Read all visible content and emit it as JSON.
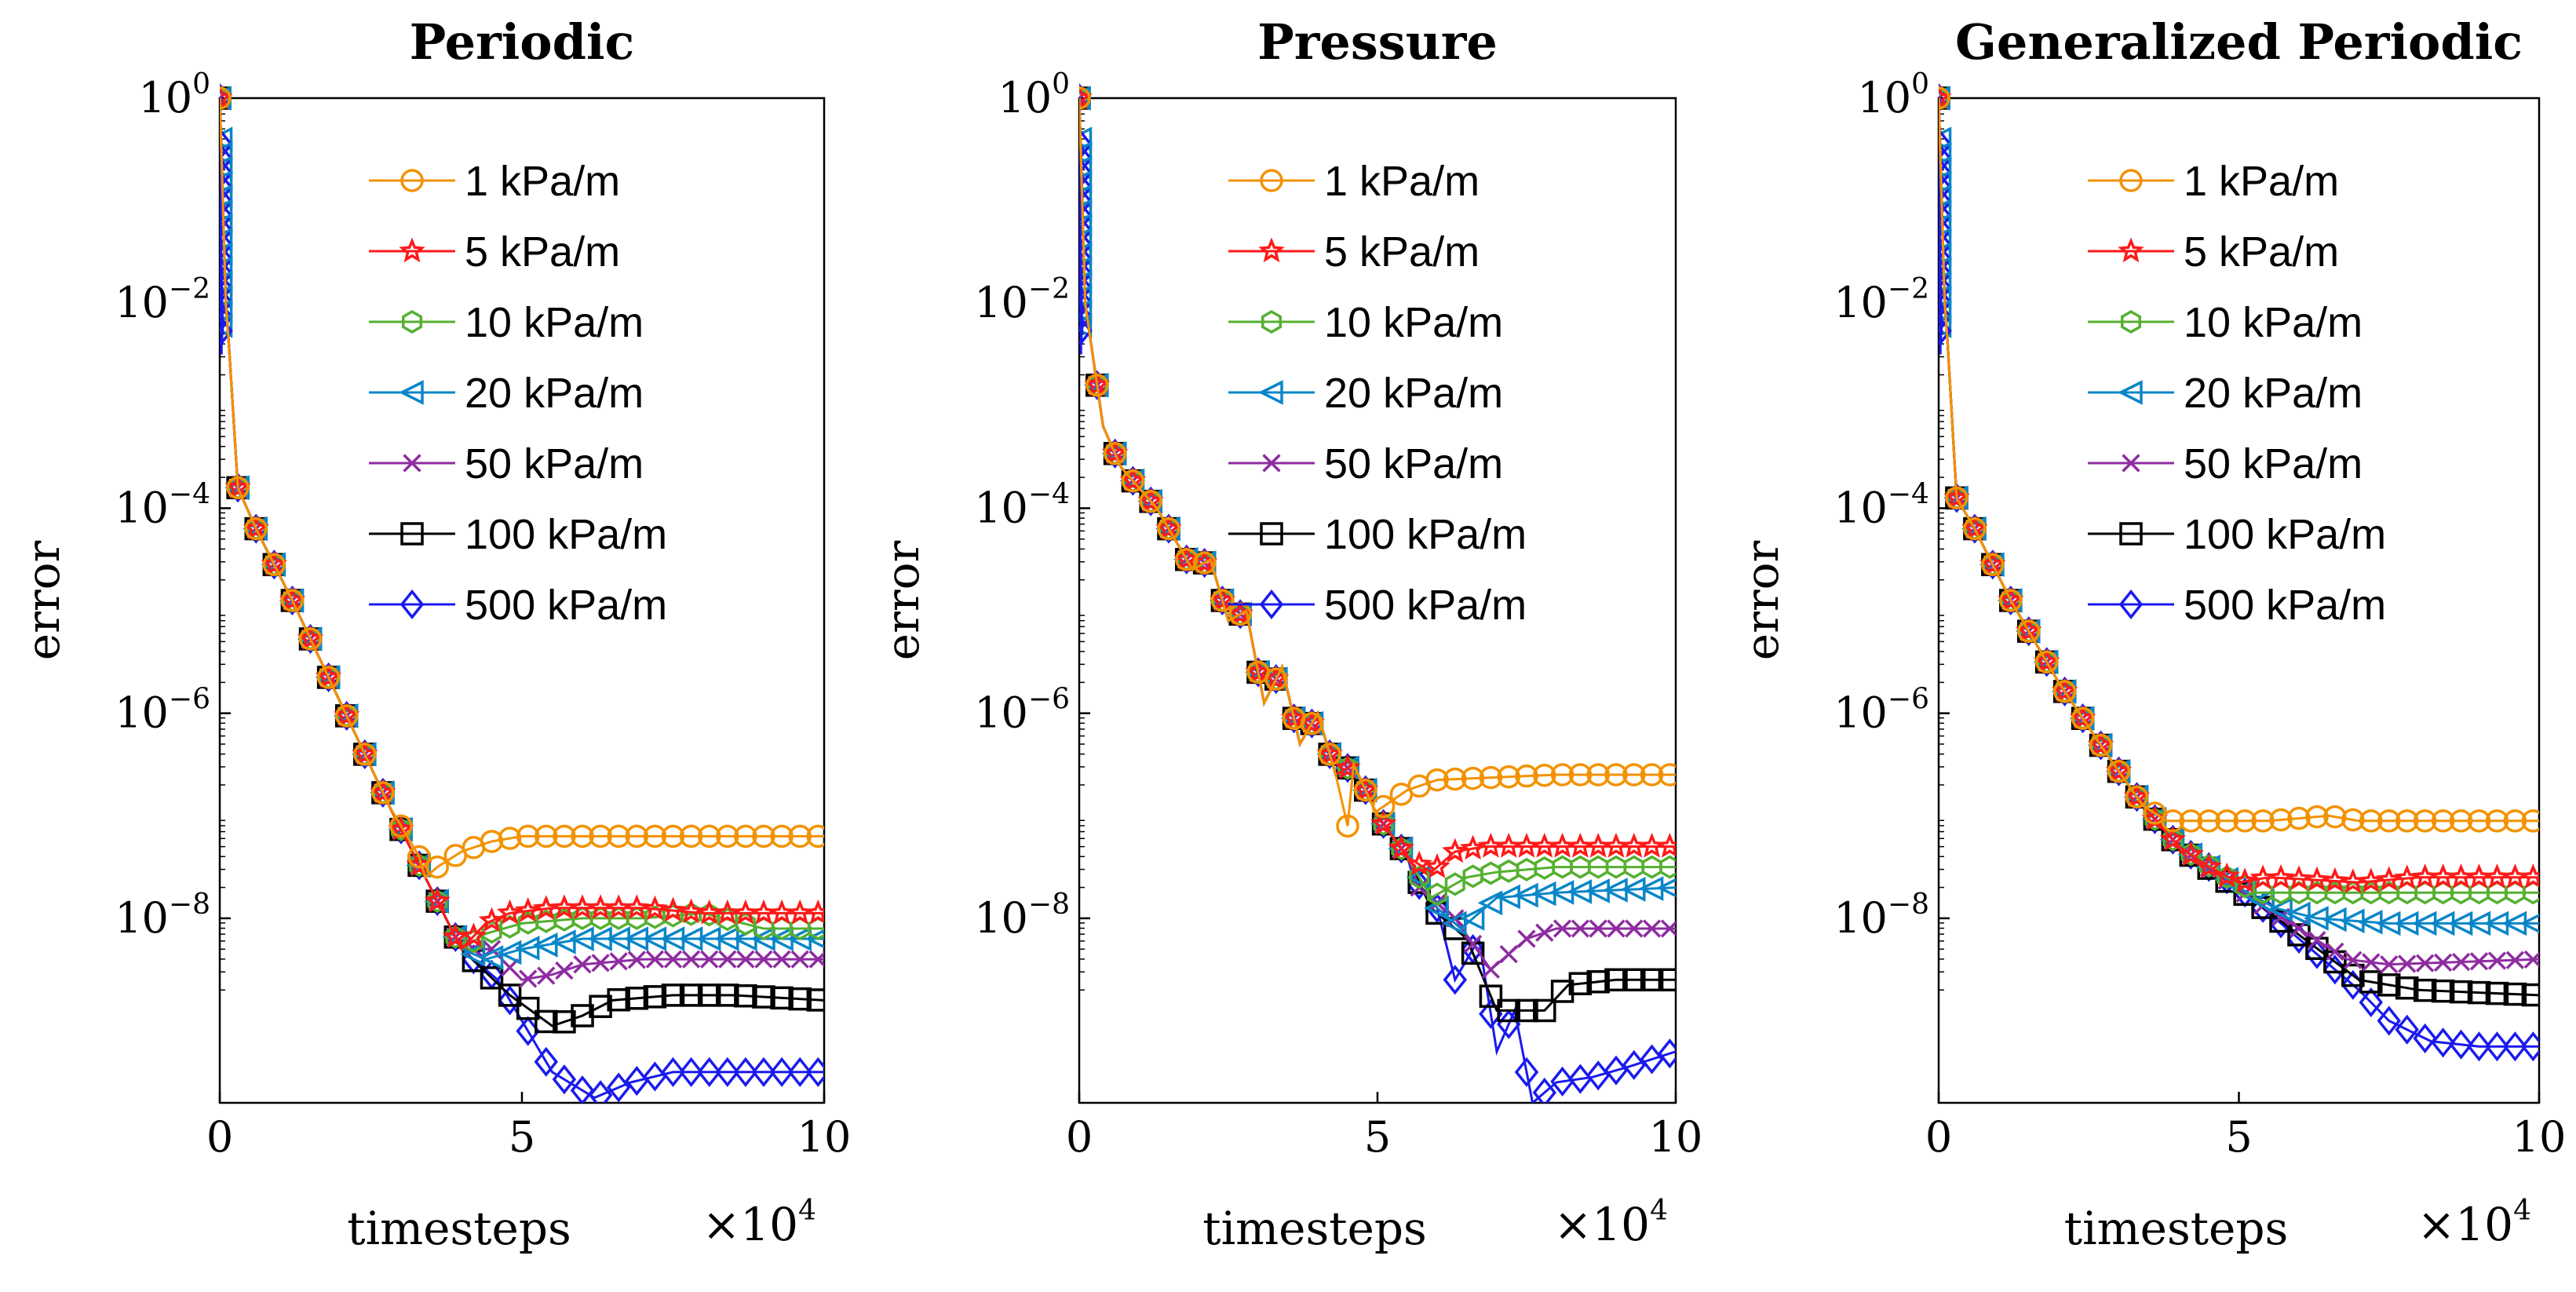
{
  "colors": {
    "1 kPa/m": "#f39200",
    "5 kPa/m": "#ff1a1a",
    "10 kPa/m": "#55b030",
    "20 kPa/m": "#0a86c8",
    "50 kPa/m": "#8e2ca0",
    "100 kPa/m": "#000000",
    "500 kPa/m": "#1a1aee"
  },
  "markers": {
    "1 kPa/m": "circle",
    "5 kPa/m": "star",
    "10 kPa/m": "hexagon",
    "20 kPa/m": "triangle-left",
    "50 kPa/m": "cross",
    "100 kPa/m": "square",
    "500 kPa/m": "diamond"
  },
  "chart_data": [
    {
      "type": "line",
      "title": "Periodic",
      "xlabel": "timesteps",
      "ylabel": "error",
      "x_multiplier": "×10",
      "x_multiplier_exp": "4",
      "y_scale": "log",
      "xlim": [
        0,
        10
      ],
      "ylim_log10": [
        -9.8,
        0
      ],
      "xticks": [
        "0",
        "5",
        "10"
      ],
      "yticks": [
        {
          "base": "10",
          "exp": "0",
          "log": 0
        },
        {
          "base": "10",
          "exp": "−2",
          "log": -2
        },
        {
          "base": "10",
          "exp": "−4",
          "log": -4
        },
        {
          "base": "10",
          "exp": "−6",
          "log": -6
        },
        {
          "base": "10",
          "exp": "−8",
          "log": -8
        }
      ],
      "legend_position": "top-right",
      "common_log10": [
        [
          0,
          0
        ],
        [
          0.05,
          -1
        ],
        [
          0.1,
          -2
        ],
        [
          0.15,
          -2.4
        ],
        [
          0.3,
          -3.8
        ],
        [
          0.6,
          -4.2
        ],
        [
          1.2,
          -4.9
        ],
        [
          2.0,
          -5.9
        ],
        [
          2.8,
          -6.9
        ],
        [
          3.4,
          -7.6
        ],
        [
          4.0,
          -8.3
        ]
      ],
      "series": [
        {
          "name": "1 kPa/m",
          "points_log10": [
            [
              3.3,
              -7.4
            ],
            [
              3.6,
              -7.5
            ],
            [
              4.0,
              -7.35
            ],
            [
              4.5,
              -7.25
            ],
            [
              5.0,
              -7.2
            ],
            [
              7.0,
              -7.2
            ],
            [
              10,
              -7.2
            ]
          ]
        },
        {
          "name": "5 kPa/m",
          "points_log10": [
            [
              4.0,
              -8.3
            ],
            [
              4.4,
              -8.05
            ],
            [
              4.8,
              -7.95
            ],
            [
              5.5,
              -7.9
            ],
            [
              7.0,
              -7.9
            ],
            [
              8.0,
              -7.95
            ],
            [
              10,
              -7.95
            ]
          ]
        },
        {
          "name": "10 kPa/m",
          "points_log10": [
            [
              4.0,
              -8.3
            ],
            [
              4.4,
              -8.15
            ],
            [
              5.0,
              -8.05
            ],
            [
              6.0,
              -8.0
            ],
            [
              7.0,
              -8.0
            ],
            [
              8.0,
              -7.95
            ],
            [
              9.0,
              -8.1
            ],
            [
              10,
              -8.1
            ]
          ]
        },
        {
          "name": "20 kPa/m",
          "points_log10": [
            [
              4.0,
              -8.3
            ],
            [
              4.4,
              -8.4
            ],
            [
              5.0,
              -8.3
            ],
            [
              6.0,
              -8.2
            ],
            [
              7.0,
              -8.2
            ],
            [
              9.0,
              -8.2
            ],
            [
              10,
              -8.2
            ]
          ]
        },
        {
          "name": "50 kPa/m",
          "points_log10": [
            [
              4.5,
              -8.3
            ],
            [
              5.0,
              -8.6
            ],
            [
              5.5,
              -8.55
            ],
            [
              6.0,
              -8.45
            ],
            [
              7.0,
              -8.4
            ],
            [
              10,
              -8.4
            ]
          ]
        },
        {
          "name": "100 kPa/m",
          "points_log10": [
            [
              4.8,
              -8.75
            ],
            [
              5.5,
              -9.05
            ],
            [
              6.0,
              -8.95
            ],
            [
              6.5,
              -8.8
            ],
            [
              7.5,
              -8.75
            ],
            [
              8.5,
              -8.75
            ],
            [
              10,
              -8.8
            ]
          ]
        },
        {
          "name": "500 kPa/m",
          "points_log10": [
            [
              4.6,
              -8.6
            ],
            [
              5.0,
              -9.0
            ],
            [
              5.5,
              -9.5
            ],
            [
              6.2,
              -9.75
            ],
            [
              6.8,
              -9.6
            ],
            [
              7.5,
              -9.5
            ],
            [
              10,
              -9.5
            ]
          ]
        }
      ]
    },
    {
      "type": "line",
      "title": "Pressure",
      "xlabel": "timesteps",
      "ylabel": "error",
      "x_multiplier": "×10",
      "x_multiplier_exp": "4",
      "y_scale": "log",
      "xlim": [
        0,
        10
      ],
      "ylim_log10": [
        -9.8,
        0
      ],
      "xticks": [
        "0",
        "5",
        "10"
      ],
      "yticks": [
        {
          "base": "10",
          "exp": "0",
          "log": 0
        },
        {
          "base": "10",
          "exp": "−2",
          "log": -2
        },
        {
          "base": "10",
          "exp": "−4",
          "log": -4
        },
        {
          "base": "10",
          "exp": "−6",
          "log": -6
        },
        {
          "base": "10",
          "exp": "−8",
          "log": -8
        }
      ],
      "legend_position": "top-right",
      "common_log10": [
        [
          0,
          0
        ],
        [
          0.05,
          -1
        ],
        [
          0.1,
          -2
        ],
        [
          0.2,
          -2.4
        ],
        [
          0.4,
          -3.2
        ],
        [
          0.7,
          -3.6
        ],
        [
          1.0,
          -3.8
        ],
        [
          1.3,
          -4.0
        ],
        [
          1.6,
          -4.3
        ],
        [
          1.9,
          -4.6
        ],
        [
          2.2,
          -4.5
        ],
        [
          2.5,
          -5.1
        ],
        [
          2.8,
          -5.0
        ],
        [
          3.1,
          -5.9
        ],
        [
          3.4,
          -5.55
        ],
        [
          3.7,
          -6.3
        ],
        [
          4.0,
          -6.0
        ],
        [
          4.3,
          -6.6
        ],
        [
          4.6,
          -6.5
        ],
        [
          5.0,
          -7.0
        ],
        [
          5.5,
          -7.4
        ]
      ],
      "series": [
        {
          "name": "1 kPa/m",
          "points_log10": [
            [
              4.5,
              -7.1
            ],
            [
              5.0,
              -6.95
            ],
            [
              5.5,
              -6.75
            ],
            [
              6.0,
              -6.65
            ],
            [
              8.0,
              -6.6
            ],
            [
              10,
              -6.6
            ]
          ]
        },
        {
          "name": "5 kPa/m",
          "points_log10": [
            [
              5.5,
              -7.4
            ],
            [
              5.9,
              -7.55
            ],
            [
              6.3,
              -7.35
            ],
            [
              6.8,
              -7.3
            ],
            [
              8.0,
              -7.3
            ],
            [
              10,
              -7.3
            ]
          ]
        },
        {
          "name": "10 kPa/m",
          "points_log10": [
            [
              5.5,
              -7.4
            ],
            [
              5.9,
              -7.8
            ],
            [
              6.5,
              -7.6
            ],
            [
              7.0,
              -7.55
            ],
            [
              8.0,
              -7.5
            ],
            [
              10,
              -7.5
            ]
          ]
        },
        {
          "name": "20 kPa/m",
          "points_log10": [
            [
              5.5,
              -7.4
            ],
            [
              6.0,
              -7.9
            ],
            [
              6.4,
              -8.1
            ],
            [
              7.0,
              -7.8
            ],
            [
              8.0,
              -7.75
            ],
            [
              10,
              -7.7
            ]
          ]
        },
        {
          "name": "50 kPa/m",
          "points_log10": [
            [
              5.7,
              -7.7
            ],
            [
              6.3,
              -8.0
            ],
            [
              6.9,
              -8.5
            ],
            [
              7.5,
              -8.2
            ],
            [
              8.0,
              -8.1
            ],
            [
              10,
              -8.1
            ]
          ]
        },
        {
          "name": "100 kPa/m",
          "points_log10": [
            [
              5.9,
              -7.9
            ],
            [
              6.5,
              -8.2
            ],
            [
              7.0,
              -8.9
            ],
            [
              7.8,
              -8.9
            ],
            [
              8.2,
              -8.65
            ],
            [
              9.0,
              -8.6
            ],
            [
              10,
              -8.6
            ]
          ]
        },
        {
          "name": "500 kPa/m",
          "points_log10": [
            [
              5.6,
              -7.6
            ],
            [
              6.0,
              -7.9
            ],
            [
              6.3,
              -8.6
            ],
            [
              6.7,
              -8.2
            ],
            [
              7.0,
              -9.3
            ],
            [
              7.3,
              -8.9
            ],
            [
              7.6,
              -9.8
            ],
            [
              8.0,
              -9.6
            ],
            [
              8.6,
              -9.55
            ],
            [
              9.2,
              -9.45
            ],
            [
              10,
              -9.3
            ]
          ]
        }
      ]
    },
    {
      "type": "line",
      "title": "Generalized Periodic",
      "xlabel": "timesteps",
      "ylabel": "error",
      "x_multiplier": "×10",
      "x_multiplier_exp": "4",
      "y_scale": "log",
      "xlim": [
        0,
        10
      ],
      "ylim_log10": [
        -9.8,
        0
      ],
      "xticks": [
        "0",
        "5",
        "10"
      ],
      "yticks": [
        {
          "base": "10",
          "exp": "0",
          "log": 0
        },
        {
          "base": "10",
          "exp": "−2",
          "log": -2
        },
        {
          "base": "10",
          "exp": "−4",
          "log": -4
        },
        {
          "base": "10",
          "exp": "−6",
          "log": -6
        },
        {
          "base": "10",
          "exp": "−8",
          "log": -8
        }
      ],
      "legend_position": "top-right",
      "common_log10": [
        [
          0,
          0
        ],
        [
          0.05,
          -1
        ],
        [
          0.1,
          -2
        ],
        [
          0.15,
          -2.4
        ],
        [
          0.3,
          -3.9
        ],
        [
          0.6,
          -4.2
        ],
        [
          1.2,
          -4.9
        ],
        [
          2.0,
          -5.7
        ],
        [
          2.8,
          -6.4
        ],
        [
          3.4,
          -6.9
        ],
        [
          4.0,
          -7.3
        ]
      ],
      "series": [
        {
          "name": "1 kPa/m",
          "points_log10": [
            [
              3.4,
              -6.9
            ],
            [
              3.8,
              -7.05
            ],
            [
              4.5,
              -7.05
            ],
            [
              5.5,
              -7.05
            ],
            [
              6.5,
              -7.0
            ],
            [
              7.0,
              -7.05
            ],
            [
              10,
              -7.05
            ]
          ]
        },
        {
          "name": "5 kPa/m",
          "points_log10": [
            [
              4.0,
              -7.3
            ],
            [
              4.5,
              -7.5
            ],
            [
              5.0,
              -7.65
            ],
            [
              5.5,
              -7.6
            ],
            [
              7.0,
              -7.65
            ],
            [
              8.0,
              -7.6
            ],
            [
              10,
              -7.6
            ]
          ]
        },
        {
          "name": "10 kPa/m",
          "points_log10": [
            [
              4.0,
              -7.3
            ],
            [
              4.8,
              -7.6
            ],
            [
              5.3,
              -7.75
            ],
            [
              6.0,
              -7.75
            ],
            [
              8.0,
              -7.75
            ],
            [
              10,
              -7.75
            ]
          ]
        },
        {
          "name": "20 kPa/m",
          "points_log10": [
            [
              4.0,
              -7.3
            ],
            [
              5.0,
              -7.7
            ],
            [
              5.6,
              -7.9
            ],
            [
              6.3,
              -8.0
            ],
            [
              7.5,
              -8.05
            ],
            [
              10,
              -8.05
            ]
          ]
        },
        {
          "name": "50 kPa/m",
          "points_log10": [
            [
              4.0,
              -7.3
            ],
            [
              5.2,
              -7.8
            ],
            [
              6.0,
              -8.1
            ],
            [
              6.8,
              -8.4
            ],
            [
              7.5,
              -8.45
            ],
            [
              10,
              -8.4
            ]
          ]
        },
        {
          "name": "100 kPa/m",
          "points_log10": [
            [
              4.0,
              -7.3
            ],
            [
              5.3,
              -7.85
            ],
            [
              6.2,
              -8.25
            ],
            [
              7.0,
              -8.6
            ],
            [
              8.0,
              -8.7
            ],
            [
              10,
              -8.75
            ]
          ]
        },
        {
          "name": "500 kPa/m",
          "points_log10": [
            [
              4.0,
              -7.3
            ],
            [
              5.0,
              -7.7
            ],
            [
              6.0,
              -8.2
            ],
            [
              7.0,
              -8.7
            ],
            [
              7.5,
              -9.0
            ],
            [
              8.2,
              -9.2
            ],
            [
              9.0,
              -9.25
            ],
            [
              10,
              -9.25
            ]
          ]
        }
      ]
    }
  ]
}
